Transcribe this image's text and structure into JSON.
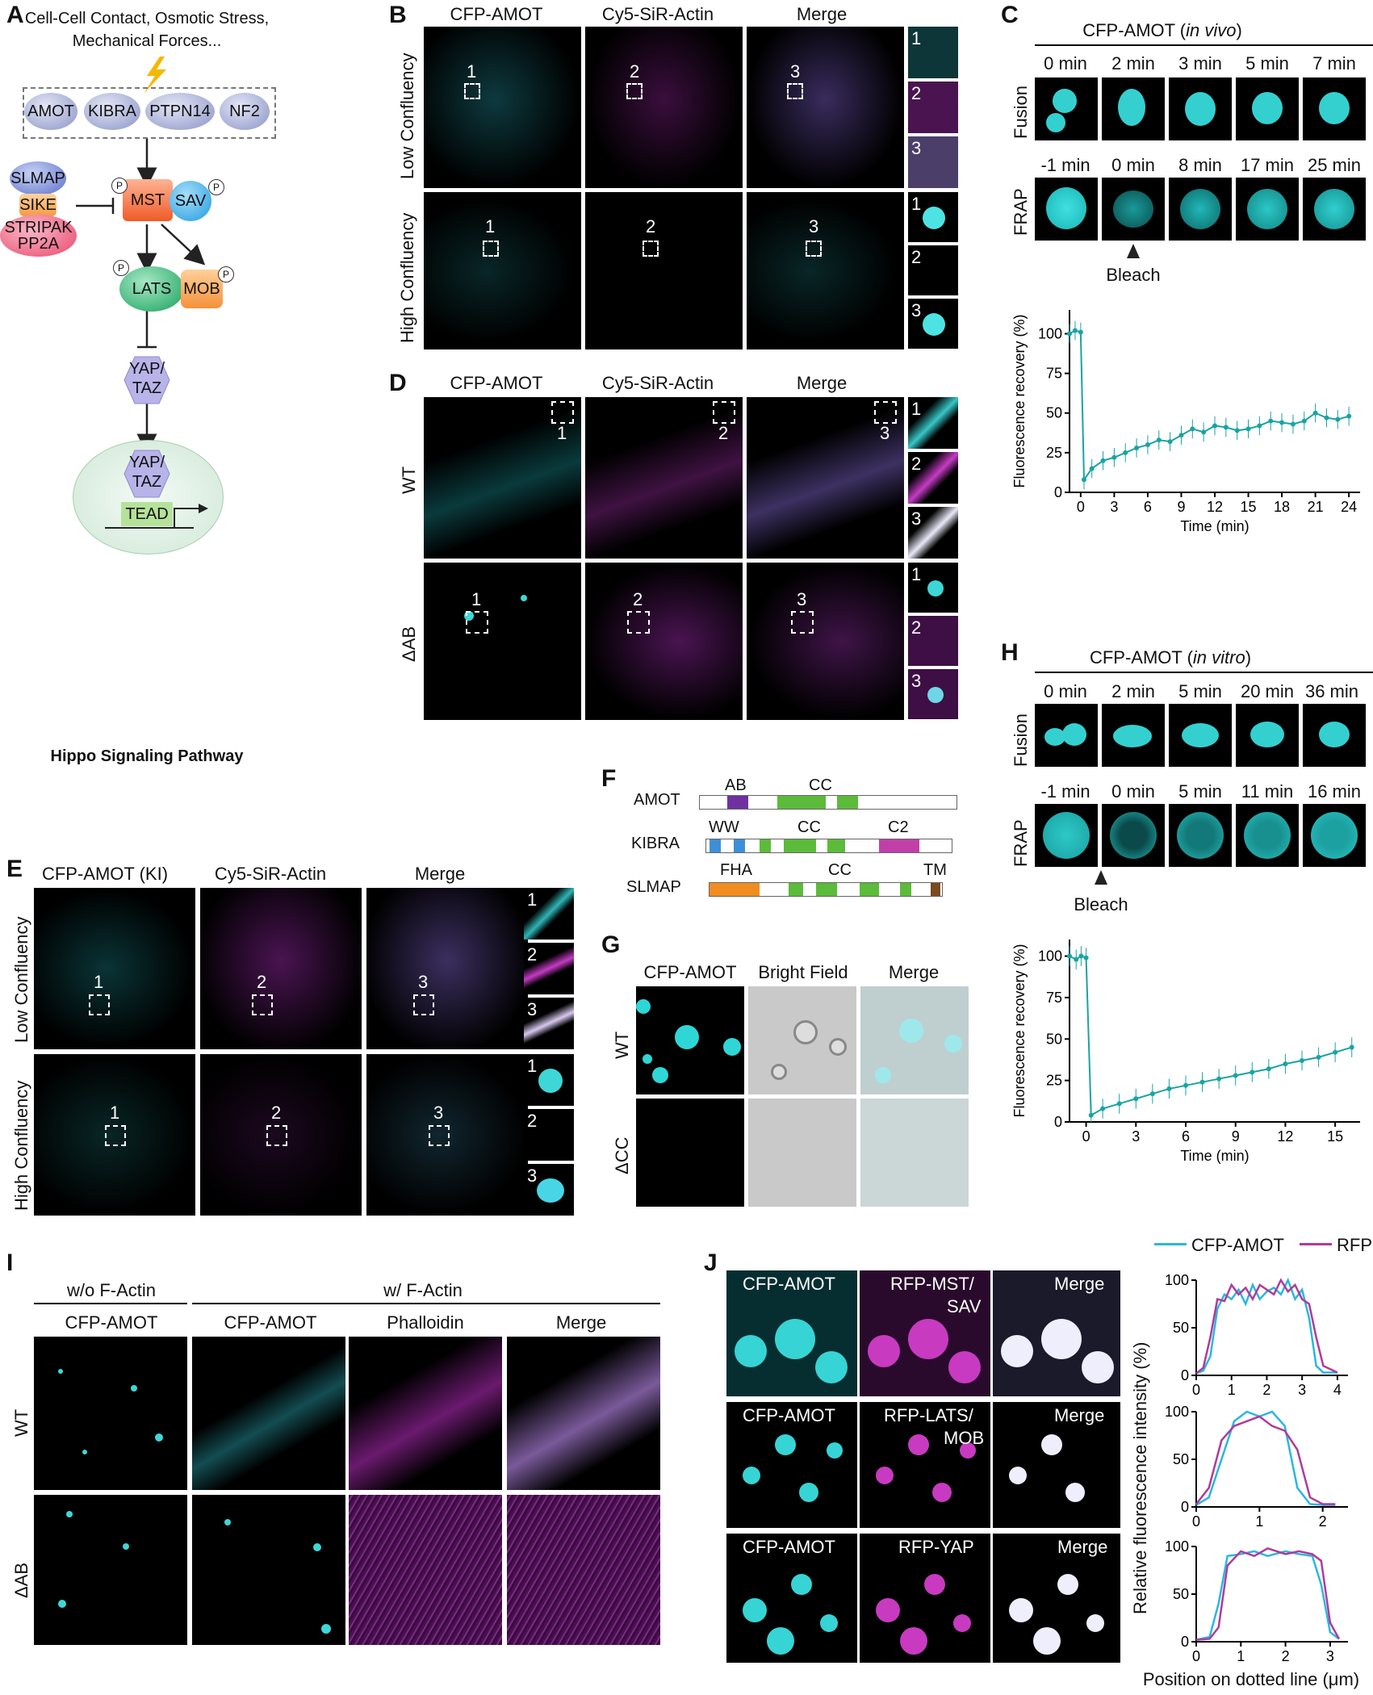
{
  "panelA": {
    "letter": "A",
    "stimulus": "Cell-Cell Contact, Osmotic Stress,",
    "stimulus2": "Mechanical Forces...",
    "upstream": [
      "AMOT",
      "KIBRA",
      "PTPN14",
      "NF2"
    ],
    "slmap": "SLMAP",
    "sike": "SIKE",
    "stripak": "STRIPAK",
    "pp2a": "PP2A",
    "mst": "MST",
    "sav": "SAV",
    "lats": "LATS",
    "mob": "MOB",
    "yap": "YAP/",
    "taz": "TAZ",
    "tead": "TEAD",
    "p": "P",
    "caption": "Hippo Signaling Pathway"
  },
  "panelB": {
    "letter": "B",
    "cols": [
      "CFP-AMOT",
      "Cy5-SiR-Actin",
      "Merge"
    ],
    "rows": [
      "Low Confluency",
      "High Confluency"
    ],
    "nums": [
      "1",
      "2",
      "3"
    ]
  },
  "panelC": {
    "letter": "C",
    "title": "CFP-AMOT (",
    "title_it": "in vivo",
    "title_end": ")",
    "fusion_label": "Fusion",
    "fusion_times": [
      "0 min",
      "2 min",
      "3 min",
      "5 min",
      "7 min"
    ],
    "frap_label": "FRAP",
    "frap_times": [
      "-1 min",
      "0 min",
      "8 min",
      "17 min",
      "25 min"
    ],
    "bleach": "Bleach",
    "ylabel": "Fluorescence recovery (%)",
    "xlabel": "Time (min)"
  },
  "panelD": {
    "letter": "D",
    "cols": [
      "CFP-AMOT",
      "Cy5-SiR-Actin",
      "Merge"
    ],
    "rows": [
      "WT",
      "ΔAB"
    ],
    "nums": [
      "1",
      "2",
      "3"
    ]
  },
  "panelE": {
    "letter": "E",
    "cols": [
      "CFP-AMOT (KI)",
      "Cy5-SiR-Actin",
      "Merge"
    ],
    "rows": [
      "Low Confluency",
      "High Confluency"
    ],
    "nums": [
      "1",
      "2",
      "3"
    ]
  },
  "panelF": {
    "letter": "F",
    "proteins": [
      {
        "name": "AMOT",
        "domains": [
          "AB",
          "CC"
        ]
      },
      {
        "name": "KIBRA",
        "domains": [
          "WW",
          "CC",
          "C2"
        ]
      },
      {
        "name": "SLMAP",
        "domains": [
          "FHA",
          "CC",
          "TM"
        ]
      }
    ]
  },
  "panelG": {
    "letter": "G",
    "cols": [
      "CFP-AMOT",
      "Bright Field",
      "Merge"
    ],
    "rows": [
      "WT",
      "ΔCC"
    ]
  },
  "panelH": {
    "letter": "H",
    "title": "CFP-AMOT (",
    "title_it": "in vitro",
    "title_end": ")",
    "fusion_label": "Fusion",
    "fusion_times": [
      "0 min",
      "2 min",
      "5 min",
      "20 min",
      "36 min"
    ],
    "frap_label": "FRAP",
    "frap_times": [
      "-1 min",
      "0 min",
      "5 min",
      "11 min",
      "16 min"
    ],
    "bleach": "Bleach",
    "ylabel": "Fluorescence recovery (%)",
    "xlabel": "Time (min)"
  },
  "panelI": {
    "letter": "I",
    "group1": "w/o F-Actin",
    "group2": "w/ F-Actin",
    "cols": [
      "CFP-AMOT",
      "CFP-AMOT",
      "Phalloidin",
      "Merge"
    ],
    "rows": [
      "WT",
      "ΔAB"
    ]
  },
  "panelJ": {
    "letter": "J",
    "rows": [
      [
        "CFP-AMOT",
        "RFP-MST/",
        "SAV",
        "Merge"
      ],
      [
        "CFP-AMOT",
        "RFP-LATS/",
        "MOB",
        "Merge"
      ],
      [
        "CFP-AMOT",
        "RFP-YAP",
        "",
        "Merge"
      ]
    ],
    "legend": [
      "CFP-AMOT",
      "RFP"
    ],
    "ylabel": "Relative fluorescence intensity (%)",
    "xlabel": "Position on dotted line (μm)",
    "colors": {
      "cyan": "#2ab7e0",
      "magenta": "#b03a9c",
      "frap": "#1aa3a3"
    }
  },
  "chart_data": [
    {
      "type": "line",
      "panel": "C",
      "x": [
        -1,
        -0.5,
        0,
        0.3,
        1,
        2,
        3,
        4,
        5,
        6,
        7,
        8,
        9,
        10,
        11,
        12,
        13,
        14,
        15,
        16,
        17,
        18,
        19,
        20,
        21,
        22,
        23,
        24
      ],
      "y": [
        100,
        102,
        101,
        8,
        15,
        20,
        22,
        25,
        28,
        30,
        33,
        32,
        36,
        40,
        38,
        42,
        41,
        39,
        40,
        42,
        45,
        44,
        43,
        45,
        50,
        47,
        46,
        48
      ],
      "xlabel": "Time (min)",
      "ylabel": "Fluorescence recovery (%)",
      "xticks": [
        0,
        3,
        6,
        9,
        12,
        15,
        18,
        21,
        24
      ],
      "yticks": [
        0,
        25,
        50,
        75,
        100
      ],
      "xlim": [
        -1,
        25
      ],
      "ylim": [
        0,
        115
      ]
    },
    {
      "type": "line",
      "panel": "H",
      "x": [
        -1,
        -0.6,
        -0.3,
        0,
        0.3,
        1,
        2,
        3,
        4,
        5,
        6,
        7,
        8,
        9,
        10,
        11,
        12,
        13,
        14,
        15,
        16
      ],
      "y": [
        100,
        98,
        100,
        99,
        4,
        8,
        11,
        14,
        17,
        20,
        22,
        24,
        26,
        28,
        30,
        32,
        35,
        37,
        39,
        42,
        45
      ],
      "xlabel": "Time (min)",
      "ylabel": "Fluorescence recovery (%)",
      "xticks": [
        0,
        3,
        6,
        9,
        12,
        15
      ],
      "yticks": [
        0,
        25,
        50,
        75,
        100
      ],
      "xlim": [
        -1,
        16.5
      ],
      "ylim": [
        0,
        110
      ]
    },
    {
      "type": "line",
      "panel": "J1",
      "series": [
        {
          "name": "CFP-AMOT",
          "x": [
            0,
            0.2,
            0.4,
            0.6,
            0.8,
            1,
            1.2,
            1.4,
            1.6,
            1.8,
            2,
            2.2,
            2.4,
            2.6,
            2.8,
            3,
            3.2,
            3.4,
            3.6,
            4
          ],
          "y": [
            2,
            5,
            20,
            70,
            85,
            80,
            90,
            75,
            95,
            80,
            88,
            92,
            85,
            100,
            80,
            90,
            60,
            10,
            3,
            3
          ]
        },
        {
          "name": "RFP",
          "x": [
            0,
            0.2,
            0.4,
            0.6,
            0.8,
            1,
            1.2,
            1.4,
            1.6,
            1.8,
            2,
            2.2,
            2.4,
            2.6,
            2.8,
            3,
            3.2,
            3.4,
            3.6,
            4
          ],
          "y": [
            2,
            8,
            40,
            80,
            78,
            95,
            85,
            92,
            80,
            95,
            90,
            85,
            100,
            88,
            95,
            80,
            75,
            40,
            10,
            3
          ]
        }
      ],
      "xticks": [
        0,
        1,
        2,
        3,
        4
      ],
      "yticks": [
        0,
        50,
        100
      ],
      "xlim": [
        0,
        4.3
      ],
      "ylim": [
        0,
        100
      ]
    },
    {
      "type": "line",
      "panel": "J2",
      "series": [
        {
          "name": "CFP-AMOT",
          "x": [
            0,
            0.2,
            0.4,
            0.6,
            0.8,
            1,
            1.2,
            1.4,
            1.6,
            1.8,
            2,
            2.2
          ],
          "y": [
            2,
            10,
            50,
            90,
            100,
            95,
            100,
            85,
            20,
            3,
            2,
            2
          ]
        },
        {
          "name": "RFP",
          "x": [
            0,
            0.2,
            0.4,
            0.6,
            0.8,
            1,
            1.2,
            1.4,
            1.6,
            1.8,
            2,
            2.2
          ],
          "y": [
            3,
            20,
            70,
            85,
            90,
            95,
            85,
            80,
            60,
            10,
            3,
            3
          ]
        }
      ],
      "xticks": [
        0,
        1,
        2
      ],
      "yticks": [
        0,
        50,
        100
      ],
      "xlim": [
        0,
        2.4
      ],
      "ylim": [
        0,
        100
      ]
    },
    {
      "type": "line",
      "panel": "J3",
      "series": [
        {
          "name": "CFP-AMOT",
          "x": [
            0,
            0.3,
            0.5,
            0.7,
            1,
            1.3,
            1.6,
            2,
            2.3,
            2.6,
            2.8,
            3,
            3.2
          ],
          "y": [
            2,
            5,
            40,
            90,
            92,
            95,
            90,
            95,
            92,
            90,
            60,
            10,
            3
          ]
        },
        {
          "name": "RFP",
          "x": [
            0,
            0.3,
            0.5,
            0.7,
            1,
            1.3,
            1.6,
            2,
            2.3,
            2.6,
            2.8,
            3,
            3.2
          ],
          "y": [
            2,
            3,
            15,
            80,
            95,
            90,
            98,
            92,
            95,
            92,
            85,
            20,
            3
          ]
        }
      ],
      "xticks": [
        0,
        1,
        2,
        3
      ],
      "yticks": [
        0,
        50,
        100
      ],
      "xlim": [
        0,
        3.4
      ],
      "ylim": [
        0,
        100
      ]
    }
  ]
}
